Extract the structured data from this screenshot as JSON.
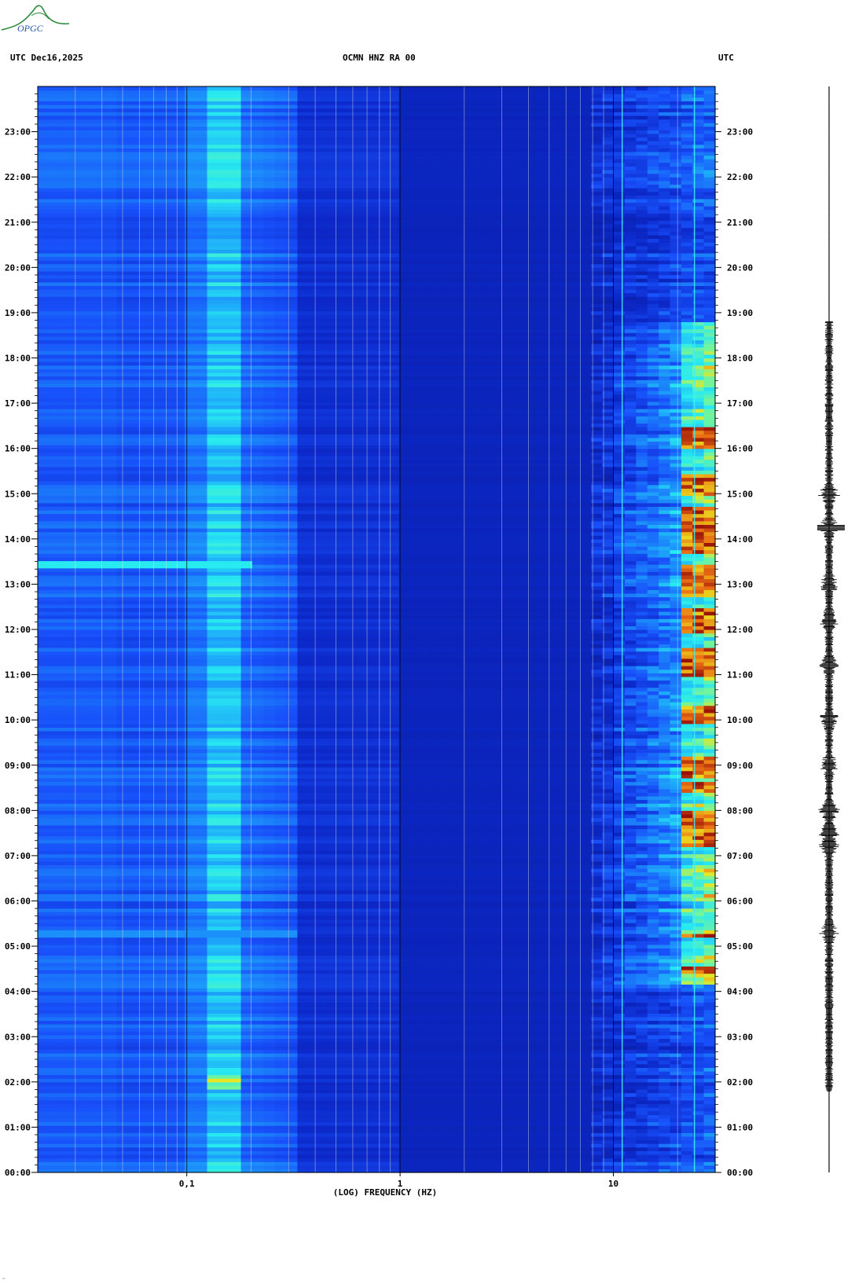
{
  "header": {
    "left_label": "UTC  Dec16,2025",
    "center_label": "OCMN HNZ RA 00",
    "right_label": "UTC"
  },
  "logo": {
    "text": "OPGC"
  },
  "colors": {
    "background_low": "#0a22c0",
    "background_mid": "#1e5aff",
    "cyan": "#30e8f0",
    "yellow": "#e8e020",
    "red": "#b01808",
    "grid": "#ffffff",
    "seismogram": "#000000"
  },
  "chart_data": {
    "type": "heatmap",
    "title": "OCMN HNZ RA 00",
    "xlabel": "(LOG) FREQUENCY (HZ)",
    "ylabel": "UTC",
    "x_scale": "log",
    "xlim": [
      0.02,
      30
    ],
    "x_ticks": [
      {
        "value": 0.1,
        "label": "0,1"
      },
      {
        "value": 1,
        "label": "1"
      },
      {
        "value": 10,
        "label": "10"
      }
    ],
    "ylim_hours": [
      0,
      24
    ],
    "y_ticks": [
      "00:00",
      "01:00",
      "02:00",
      "03:00",
      "04:00",
      "05:00",
      "06:00",
      "07:00",
      "08:00",
      "09:00",
      "10:00",
      "11:00",
      "12:00",
      "13:00",
      "14:00",
      "15:00",
      "16:00",
      "17:00",
      "18:00",
      "19:00",
      "20:00",
      "21:00",
      "22:00",
      "23:00"
    ],
    "grid_freqs": [
      0.03,
      0.04,
      0.05,
      0.06,
      0.07,
      0.08,
      0.09,
      0.1,
      0.2,
      0.3,
      0.4,
      0.5,
      0.6,
      0.7,
      0.8,
      0.9,
      1,
      2,
      3,
      4,
      5,
      6,
      7,
      8,
      9,
      10,
      20
    ],
    "features": {
      "microseism_band_hz": [
        0.12,
        0.17
      ],
      "microseism_peak_hour": 2.0,
      "horizontal_event_hour": 13.45,
      "horizontal_event_hour_2": 5.3,
      "high_freq_activity_hours": [
        4.2,
        18.8
      ],
      "strong_red_hz": [
        20,
        28
      ],
      "red_bursts_hours": [
        [
          16.0,
          16.5
        ],
        [
          15.0,
          15.4
        ],
        [
          13.7,
          14.7
        ],
        [
          12.7,
          13.4
        ],
        [
          11.9,
          12.5
        ],
        [
          11.0,
          11.6
        ],
        [
          9.9,
          10.3
        ],
        [
          8.7,
          9.2
        ],
        [
          8.4,
          8.6
        ],
        [
          7.2,
          8.0
        ],
        [
          4.4,
          4.6
        ],
        [
          5.2,
          5.3
        ]
      ],
      "persistent_lines_hz": [
        11,
        24
      ]
    },
    "seismogram_activity_hours": [
      1.8,
      18.8
    ],
    "seismogram_bursts_hours": [
      14.25,
      15.0,
      13.0,
      12.2,
      9.0,
      7.5,
      7.2,
      8.0,
      10.0,
      5.3,
      11.2
    ]
  }
}
